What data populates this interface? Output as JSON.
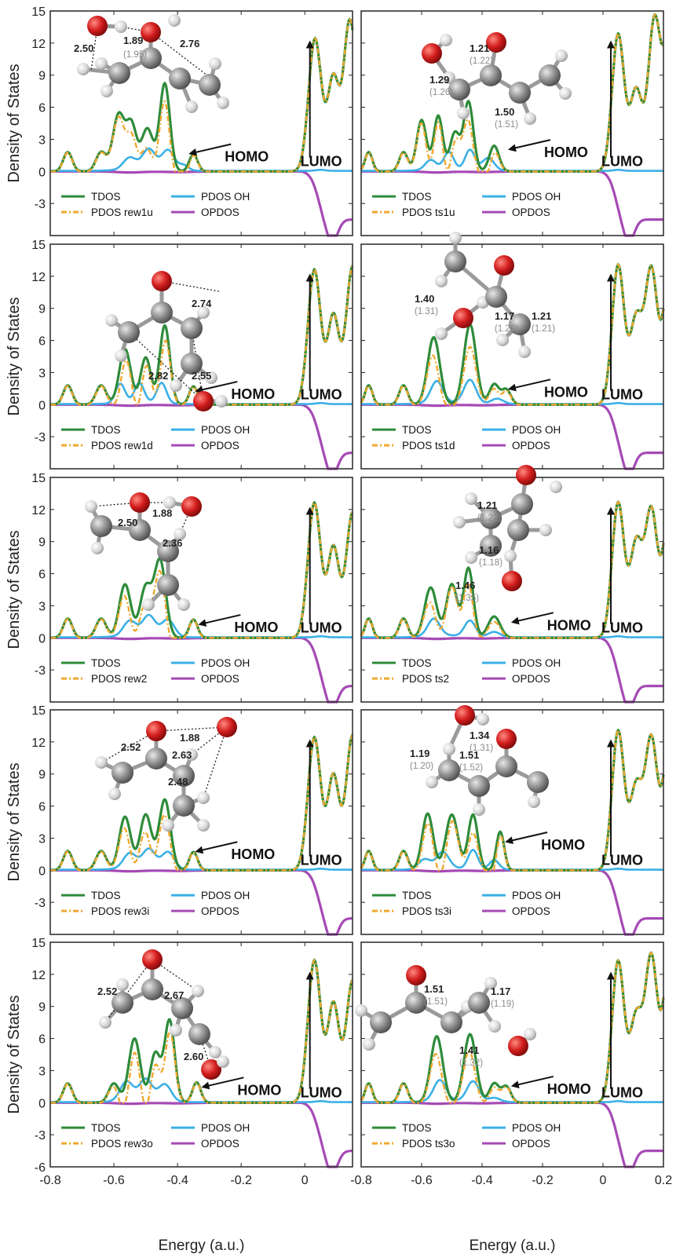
{
  "figure": {
    "ylabel": "Density of States",
    "xlabel": "Energy (a.u.)",
    "annotations": {
      "homo": "HOMO",
      "lumo": "LUMO"
    },
    "colors": {
      "tdos": "#2e8b3a",
      "pdos_mol": "#f0a830",
      "pdos_oh": "#3bb0e6",
      "opdos": "#a54ab5"
    }
  },
  "chart_data": [
    {
      "type": "line",
      "panel": "rew1u",
      "xlim": [
        -0.8,
        0.15
      ],
      "ylim": [
        -6,
        15
      ],
      "yticks": [
        15,
        12,
        9,
        6,
        3,
        0,
        -3
      ],
      "series": [
        {
          "name": "TDOS"
        },
        {
          "name": "PDOS OH"
        },
        {
          "name": "PDOS rew1u"
        },
        {
          "name": "OPDOS"
        }
      ],
      "legend": [
        "TDOS",
        "PDOS OH",
        "PDOS rew1u",
        "OPDOS"
      ],
      "bond_labels": [
        {
          "value": "2.50"
        },
        {
          "value": "1.89",
          "sub": "(1.95)"
        },
        {
          "value": "2.76"
        }
      ]
    },
    {
      "type": "line",
      "panel": "ts1u",
      "xlim": [
        -0.8,
        0.2
      ],
      "ylim": [
        -6,
        15
      ],
      "series": [
        {
          "name": "TDOS"
        },
        {
          "name": "PDOS OH"
        },
        {
          "name": "PDOS ts1u"
        },
        {
          "name": "OPDOS"
        }
      ],
      "legend": [
        "TDOS",
        "PDOS OH",
        "PDOS ts1u",
        "OPDOS"
      ],
      "bond_labels": [
        {
          "value": "1.21",
          "sub": "(1.22)"
        },
        {
          "value": "1.29",
          "sub": "(1.26)"
        },
        {
          "value": "1.50",
          "sub": "(1.51)"
        }
      ]
    },
    {
      "type": "line",
      "panel": "rew1d",
      "xlim": [
        -0.8,
        0.15
      ],
      "ylim": [
        -6,
        15
      ],
      "yticks": [
        15,
        12,
        9,
        6,
        3,
        0,
        -3
      ],
      "series": [
        {
          "name": "TDOS"
        },
        {
          "name": "PDOS OH"
        },
        {
          "name": "PDOS rew1d"
        },
        {
          "name": "OPDOS"
        }
      ],
      "legend": [
        "TDOS",
        "PDOS OH",
        "PDOS rew1d",
        "OPDOS"
      ],
      "bond_labels": [
        {
          "value": "2.74"
        },
        {
          "value": "2.82"
        },
        {
          "value": "2.55"
        }
      ]
    },
    {
      "type": "line",
      "panel": "ts1d",
      "xlim": [
        -0.8,
        0.2
      ],
      "ylim": [
        -6,
        15
      ],
      "series": [
        {
          "name": "TDOS"
        },
        {
          "name": "PDOS OH"
        },
        {
          "name": "PDOS ts1d"
        },
        {
          "name": "OPDOS"
        }
      ],
      "legend": [
        "TDOS",
        "PDOS OH",
        "PDOS ts1d",
        "OPDOS"
      ],
      "bond_labels": [
        {
          "value": "1.40",
          "sub": "(1.31)"
        },
        {
          "value": "1.17",
          "sub": "(1.20)"
        },
        {
          "value": "1.21",
          "sub": "(1.21)"
        }
      ]
    },
    {
      "type": "line",
      "panel": "rew2",
      "xlim": [
        -0.8,
        0.15
      ],
      "ylim": [
        -6,
        15
      ],
      "yticks": [
        15,
        12,
        9,
        6,
        3,
        0,
        -3
      ],
      "series": [
        {
          "name": "TDOS"
        },
        {
          "name": "PDOS OH"
        },
        {
          "name": "PDOS rew2"
        },
        {
          "name": "OPDOS"
        }
      ],
      "legend": [
        "TDOS",
        "PDOS OH",
        "PDOS rew2",
        "OPDOS"
      ],
      "bond_labels": [
        {
          "value": "2.50"
        },
        {
          "value": "1.88"
        },
        {
          "value": "2.36"
        }
      ]
    },
    {
      "type": "line",
      "panel": "ts2",
      "xlim": [
        -0.8,
        0.2
      ],
      "ylim": [
        -6,
        15
      ],
      "series": [
        {
          "name": "TDOS"
        },
        {
          "name": "PDOS OH"
        },
        {
          "name": "PDOS ts2"
        },
        {
          "name": "OPDOS"
        }
      ],
      "legend": [
        "TDOS",
        "PDOS OH",
        "PDOS ts2",
        "OPDOS"
      ],
      "bond_labels": [
        {
          "value": "1.21",
          "sub": "(1.22)"
        },
        {
          "value": "1.16",
          "sub": "(1.18)"
        },
        {
          "value": "1.46",
          "sub": "(1.35)"
        }
      ]
    },
    {
      "type": "line",
      "panel": "rew3i",
      "xlim": [
        -0.8,
        0.15
      ],
      "ylim": [
        -6,
        15
      ],
      "yticks": [
        15,
        12,
        9,
        6,
        3,
        0,
        -3
      ],
      "series": [
        {
          "name": "TDOS"
        },
        {
          "name": "PDOS OH"
        },
        {
          "name": "PDOS rew3i"
        },
        {
          "name": "OPDOS"
        }
      ],
      "legend": [
        "TDOS",
        "PDOS OH",
        "PDOS rew3i",
        "OPDOS"
      ],
      "bond_labels": [
        {
          "value": "2.52"
        },
        {
          "value": "1.88"
        },
        {
          "value": "2.63"
        },
        {
          "value": "2.48"
        }
      ]
    },
    {
      "type": "line",
      "panel": "ts3i",
      "xlim": [
        -0.8,
        0.2
      ],
      "ylim": [
        -6,
        15
      ],
      "series": [
        {
          "name": "TDOS"
        },
        {
          "name": "PDOS OH"
        },
        {
          "name": "PDOS ts3i"
        },
        {
          "name": "OPDOS"
        }
      ],
      "legend": [
        "TDOS",
        "PDOS OH",
        "PDOS ts3i",
        "OPDOS"
      ],
      "bond_labels": [
        {
          "value": "1.34",
          "sub": "(1.31)"
        },
        {
          "value": "1.19",
          "sub": "(1.20)"
        },
        {
          "value": "1.51",
          "sub": "(1.52)"
        }
      ]
    },
    {
      "type": "line",
      "panel": "rew3o",
      "xlim": [
        -0.8,
        0.15
      ],
      "ylim": [
        -6,
        15
      ],
      "yticks": [
        15,
        12,
        9,
        6,
        3,
        0,
        -3,
        -6
      ],
      "xticks": [
        "-0.8",
        "-0.6",
        "-0.4",
        "-0.2",
        "0"
      ],
      "series": [
        {
          "name": "TDOS"
        },
        {
          "name": "PDOS OH"
        },
        {
          "name": "PDOS rew3o"
        },
        {
          "name": "OPDOS"
        }
      ],
      "legend": [
        "TDOS",
        "PDOS OH",
        "PDOS rew3o",
        "OPDOS"
      ],
      "bond_labels": [
        {
          "value": "2.52"
        },
        {
          "value": "2.67"
        },
        {
          "value": "2.60"
        }
      ]
    },
    {
      "type": "line",
      "panel": "ts3o",
      "xlim": [
        -0.8,
        0.2
      ],
      "ylim": [
        -6,
        15
      ],
      "xticks": [
        "-0.8",
        "-0.6",
        "-0.4",
        "-0.2",
        "0",
        "0.2"
      ],
      "series": [
        {
          "name": "TDOS"
        },
        {
          "name": "PDOS OH"
        },
        {
          "name": "PDOS ts3o"
        },
        {
          "name": "OPDOS"
        }
      ],
      "legend": [
        "TDOS",
        "PDOS OH",
        "PDOS ts3o",
        "OPDOS"
      ],
      "bond_labels": [
        {
          "value": "1.51",
          "sub": "(1.51)"
        },
        {
          "value": "1.17",
          "sub": "(1.19)"
        },
        {
          "value": "1.41",
          "sub": "(1.32)"
        }
      ]
    }
  ]
}
